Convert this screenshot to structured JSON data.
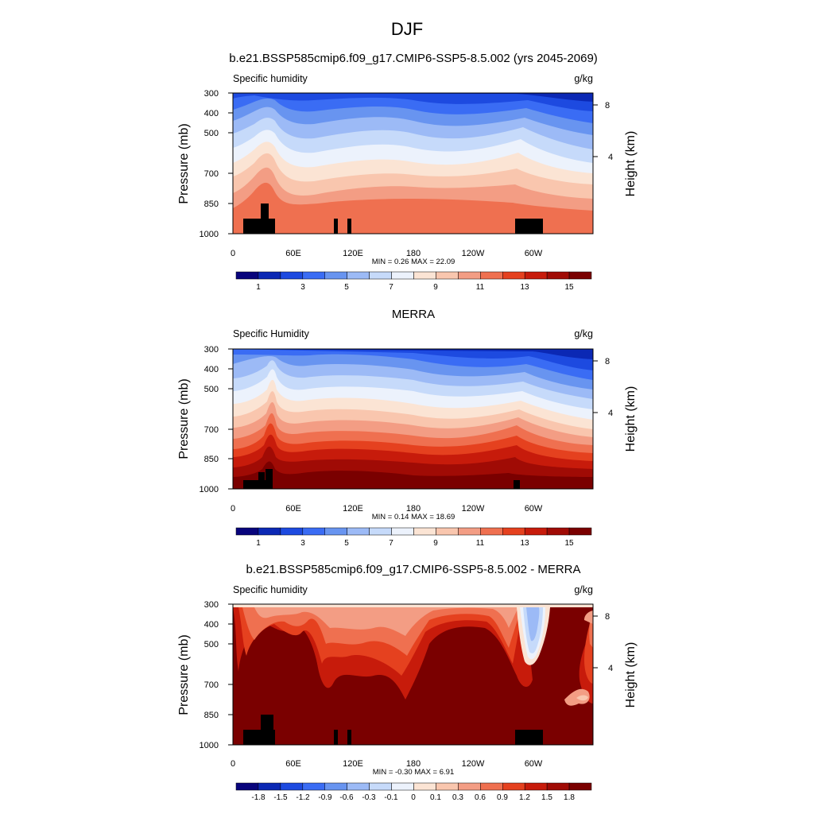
{
  "figure": {
    "title": "DJF"
  },
  "colorbar_colors": [
    "#08047c",
    "#0b28b4",
    "#1d4ae0",
    "#3a6cf4",
    "#6894f0",
    "#9cbaf6",
    "#c6dafa",
    "#ecf2fc",
    "#fbe4d4",
    "#f9c6ae",
    "#f39d84",
    "#ef7050",
    "#e5411f",
    "#c71b0b",
    "#a00b05",
    "#7a0000"
  ],
  "chart_data": [
    {
      "type": "heatmap",
      "title": "b.e21.BSSP585cmip6.f09_g17.CMIP6-SSP5-8.5.002 (yrs 2045-2069)",
      "variable_label": "Specific humidity",
      "units": "g/kg",
      "ylabel": "Pressure (mb)",
      "y2label": "Height (km)",
      "y_ticks": [
        "300",
        "400",
        "500",
        "700",
        "850",
        "1000"
      ],
      "y2_ticks": [
        "8",
        "4"
      ],
      "x_ticks": [
        "0",
        "60E",
        "120E",
        "180",
        "120W",
        "60W"
      ],
      "min_label": "MIN = ",
      "min": "0.26",
      "max_label": "MAX = ",
      "max": "22.09",
      "colorbar_labels": [
        "1",
        "3",
        "5",
        "7",
        "9",
        "11",
        "13",
        "15"
      ]
    },
    {
      "type": "heatmap",
      "title": "MERRA",
      "variable_label": "Specific Humidity",
      "units": "g/kg",
      "ylabel": "Pressure (mb)",
      "y2label": "Height (km)",
      "y_ticks": [
        "300",
        "400",
        "500",
        "700",
        "850",
        "1000"
      ],
      "y2_ticks": [
        "8",
        "4"
      ],
      "x_ticks": [
        "0",
        "60E",
        "120E",
        "180",
        "120W",
        "60W"
      ],
      "min_label": "MIN = ",
      "min": "0.14",
      "max_label": "MAX = ",
      "max": "18.69",
      "colorbar_labels": [
        "1",
        "3",
        "5",
        "7",
        "9",
        "11",
        "13",
        "15"
      ]
    },
    {
      "type": "heatmap",
      "title": "b.e21.BSSP585cmip6.f09_g17.CMIP6-SSP5-8.5.002 - MERRA",
      "variable_label": "Specific humidity",
      "units": "g/kg",
      "ylabel": "Pressure (mb)",
      "y2label": "Height (km)",
      "y_ticks": [
        "300",
        "400",
        "500",
        "700",
        "850",
        "1000"
      ],
      "y2_ticks": [
        "8",
        "4"
      ],
      "x_ticks": [
        "0",
        "60E",
        "120E",
        "180",
        "120W",
        "60W"
      ],
      "min_label": "MIN = ",
      "min": "-0.30",
      "max_label": "MAX = ",
      "max": "6.91",
      "colorbar_labels": [
        "-1.8",
        "-1.5",
        "-1.2",
        "-0.9",
        "-0.6",
        "-0.3",
        "-0.1",
        "0",
        "0.1",
        "0.3",
        "0.6",
        "0.9",
        "1.2",
        "1.5",
        "1.8"
      ]
    }
  ]
}
